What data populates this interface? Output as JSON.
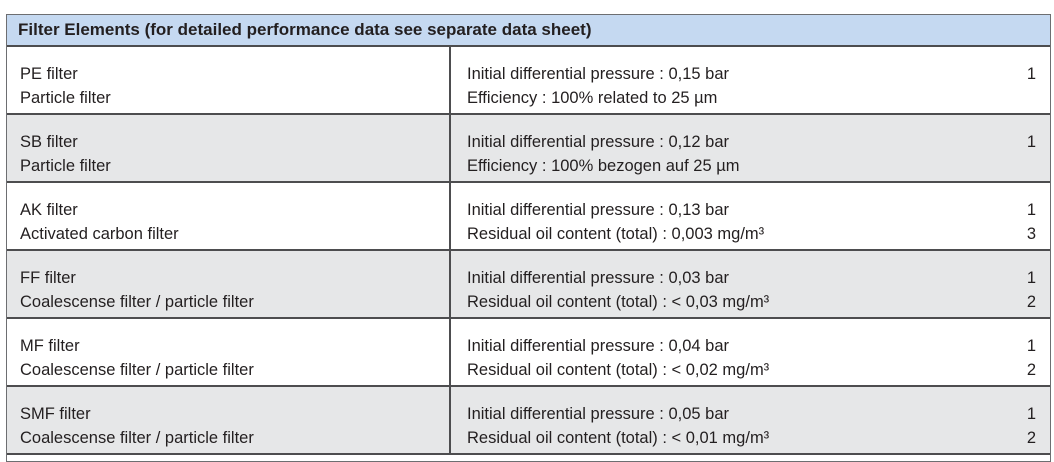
{
  "table": {
    "title": "Filter Elements (for detailed performance data see separate data sheet)",
    "rows": [
      {
        "name": "PE filter",
        "type": "Particle filter",
        "spec1": "Initial differential pressure : 0,15 bar",
        "spec2": "Efficiency : 100% related to 25 µm",
        "note1": "1",
        "note2": ""
      },
      {
        "name": "SB filter",
        "type": "Particle filter",
        "spec1": "Initial differential pressure : 0,12 bar",
        "spec2": "Efficiency : 100% bezogen auf 25 µm",
        "note1": "1",
        "note2": ""
      },
      {
        "name": "AK filter",
        "type": "Activated carbon filter",
        "spec1": "Initial differential pressure : 0,13 bar",
        "spec2": "Residual oil content (total) : 0,003 mg/m³",
        "note1": "1",
        "note2": "3"
      },
      {
        "name": "FF filter",
        "type": "Coalescense filter / particle filter",
        "spec1": "Initial differential pressure : 0,03 bar",
        "spec2": "Residual oil content (total) : < 0,03 mg/m³",
        "note1": "1",
        "note2": "2"
      },
      {
        "name": "MF filter",
        "type": "Coalescense filter / particle filter",
        "spec1": "Initial differential pressure : 0,04 bar",
        "spec2": "Residual oil content (total) : < 0,02 mg/m³",
        "note1": "1",
        "note2": "2"
      },
      {
        "name": "SMF filter",
        "type": "Coalescense filter / particle filter",
        "spec1": "Initial differential pressure : 0,05 bar",
        "spec2": "Residual oil content (total) : < 0,01 mg/m³",
        "note1": "1",
        "note2": "2"
      }
    ]
  }
}
